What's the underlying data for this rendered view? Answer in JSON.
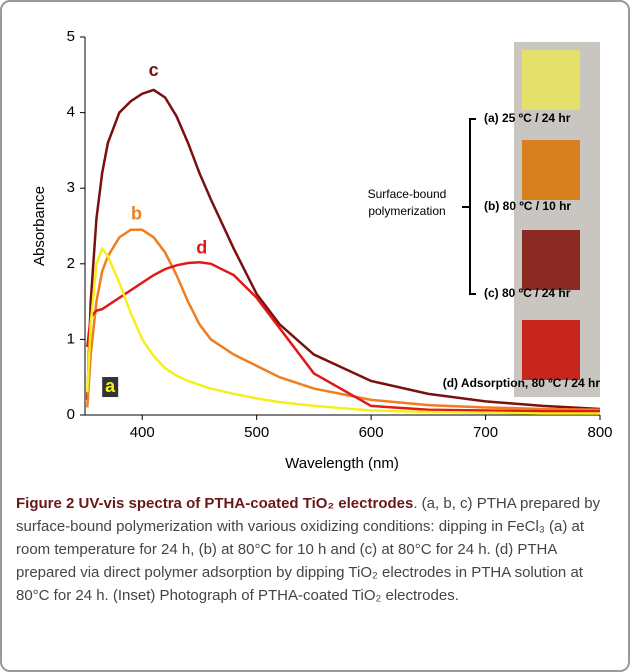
{
  "chart_data": {
    "type": "line",
    "xlabel": "Wavelength (nm)",
    "ylabel": "Absorbance",
    "xlim": [
      350,
      800
    ],
    "xticks": [
      400,
      500,
      600,
      700,
      800
    ],
    "ylim": [
      0,
      5
    ],
    "yticks": [
      0,
      1,
      2,
      3,
      4,
      5
    ],
    "x": [
      352,
      355,
      360,
      365,
      370,
      380,
      390,
      400,
      410,
      420,
      430,
      440,
      450,
      460,
      480,
      500,
      520,
      550,
      600,
      650,
      700,
      750,
      800
    ],
    "series": [
      {
        "name": "c",
        "color": "#7a1010",
        "values": [
          0.2,
          1.5,
          2.6,
          3.2,
          3.6,
          4.0,
          4.15,
          4.25,
          4.3,
          4.2,
          3.95,
          3.6,
          3.2,
          2.85,
          2.2,
          1.6,
          1.2,
          0.8,
          0.45,
          0.28,
          0.18,
          0.12,
          0.08
        ]
      },
      {
        "name": "b",
        "color": "#f07d1e",
        "values": [
          0.1,
          0.8,
          1.5,
          1.9,
          2.1,
          2.35,
          2.45,
          2.45,
          2.35,
          2.15,
          1.85,
          1.5,
          1.2,
          1.0,
          0.8,
          0.65,
          0.5,
          0.35,
          0.2,
          0.13,
          0.1,
          0.08,
          0.07
        ]
      },
      {
        "name": "d",
        "color": "#e01818",
        "values": [
          0.9,
          1.3,
          1.38,
          1.4,
          1.45,
          1.55,
          1.65,
          1.75,
          1.85,
          1.93,
          1.98,
          2.01,
          2.02,
          2.0,
          1.85,
          1.55,
          1.15,
          0.55,
          0.12,
          0.07,
          0.06,
          0.05,
          0.05
        ]
      },
      {
        "name": "a",
        "color": "#f4f01e",
        "values": [
          0.3,
          1.2,
          2.0,
          2.2,
          2.1,
          1.75,
          1.35,
          1.0,
          0.78,
          0.62,
          0.52,
          0.45,
          0.4,
          0.35,
          0.28,
          0.22,
          0.17,
          0.12,
          0.06,
          0.04,
          0.03,
          0.02,
          0.02
        ]
      }
    ],
    "inset": {
      "labels": [
        "(a) 25 ºC / 24 hr",
        "(b) 80 ºC / 10 hr",
        "(c) 80 ºC / 24 hr",
        "(d) Adsorption, 80 ºC / 24 hr"
      ],
      "group_label": [
        "Surface-bound",
        "polymerization"
      ]
    }
  },
  "caption": {
    "title": "Figure 2 UV-vis spectra of PTHA-coated TiO₂ electrodes",
    "text": ". (a, b, c) PTHA prepared by surface-bound polymerization with various oxidizing conditions: dipping in FeCl₃ (a) at room temperature for 24 h, (b) at 80°C for 10 h and (c) at 80°C for 24 h. (d) PTHA prepared via direct polymer adsorption by dipping TiO₂ electrodes in PTHA solution at 80°C for 24 h. (Inset) Photograph of PTHA-coated TiO₂ electrodes."
  }
}
